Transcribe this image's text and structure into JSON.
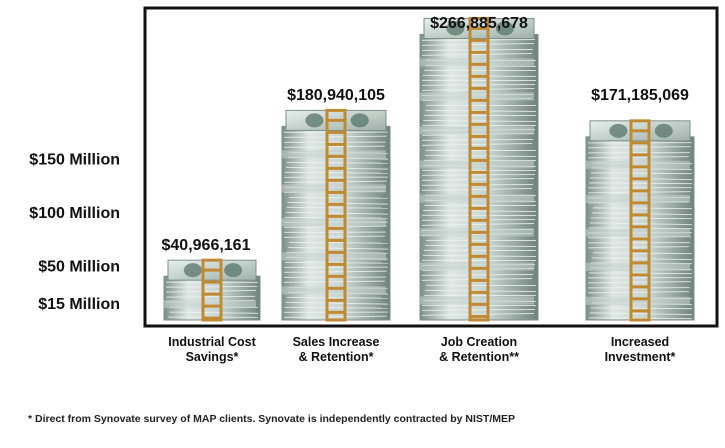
{
  "chart_data": {
    "type": "bar",
    "categories": [
      [
        "Industrial Cost",
        "Savings*"
      ],
      [
        "Sales Increase",
        "& Retention*"
      ],
      [
        "Job Creation",
        "& Retention**"
      ],
      [
        "Increased",
        "Investment*"
      ]
    ],
    "values": [
      40966161,
      180940105,
      266885678,
      171185069
    ],
    "value_labels": [
      "$40,966,161",
      "$180,940,105",
      "$266,885,678",
      "$171,185,069"
    ],
    "yticks": [
      {
        "label": "$15 Million",
        "value": 15000000
      },
      {
        "label": "$50 Million",
        "value": 50000000
      },
      {
        "label": "$100 Million",
        "value": 100000000
      },
      {
        "label": "$150 Million",
        "value": 150000000
      }
    ],
    "ylim": [
      0,
      230000000
    ],
    "title": "",
    "xlabel": "",
    "ylabel": "",
    "grid": false,
    "bar_style": "stacks of dollar bills bound with brown paper bands",
    "colors": {
      "bill_light": "#eef3f1",
      "bill_mid": "#c5d2cd",
      "bill_dark": "#7d8f89",
      "bill_face": "#5f7a70",
      "band": "#c08a32",
      "frame": "#111111"
    }
  },
  "footnote": "* Direct from Synovate survey of MAP clients.  Synovate is independently contracted by NIST/MEP"
}
